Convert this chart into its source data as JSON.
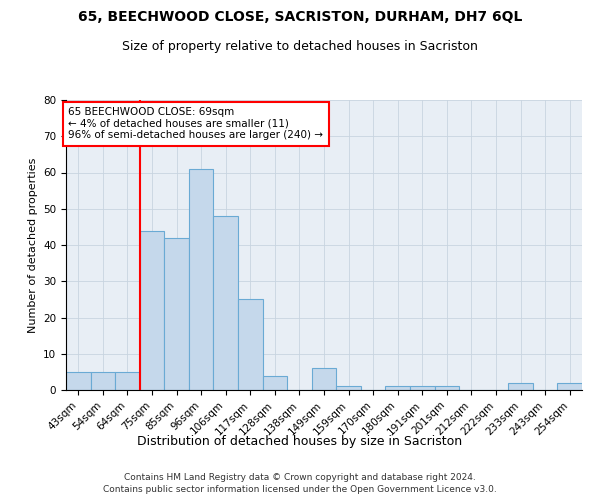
{
  "title1": "65, BEECHWOOD CLOSE, SACRISTON, DURHAM, DH7 6QL",
  "title2": "Size of property relative to detached houses in Sacriston",
  "xlabel": "Distribution of detached houses by size in Sacriston",
  "ylabel": "Number of detached properties",
  "footnote1": "Contains HM Land Registry data © Crown copyright and database right 2024.",
  "footnote2": "Contains public sector information licensed under the Open Government Licence v3.0.",
  "bin_labels": [
    "43sqm",
    "54sqm",
    "64sqm",
    "75sqm",
    "85sqm",
    "96sqm",
    "106sqm",
    "117sqm",
    "128sqm",
    "138sqm",
    "149sqm",
    "159sqm",
    "170sqm",
    "180sqm",
    "191sqm",
    "201sqm",
    "212sqm",
    "222sqm",
    "233sqm",
    "243sqm",
    "254sqm"
  ],
  "values": [
    5,
    5,
    5,
    44,
    42,
    61,
    48,
    25,
    4,
    0,
    6,
    1,
    0,
    1,
    1,
    1,
    0,
    0,
    2,
    0,
    2
  ],
  "bar_color": "#c5d8eb",
  "bar_edge_color": "#6aaad4",
  "vline_color": "red",
  "vline_x_index": 3,
  "annotation_text": "65 BEECHWOOD CLOSE: 69sqm\n← 4% of detached houses are smaller (11)\n96% of semi-detached houses are larger (240) →",
  "annotation_box_color": "white",
  "annotation_box_edge_color": "red",
  "ylim": [
    0,
    80
  ],
  "yticks": [
    0,
    10,
    20,
    30,
    40,
    50,
    60,
    70,
    80
  ],
  "grid_color": "#c8d4e0",
  "bg_color": "#e8eef5",
  "title1_fontsize": 10,
  "title2_fontsize": 9,
  "axis_fontsize": 8,
  "tick_fontsize": 7.5,
  "footnote_fontsize": 6.5
}
